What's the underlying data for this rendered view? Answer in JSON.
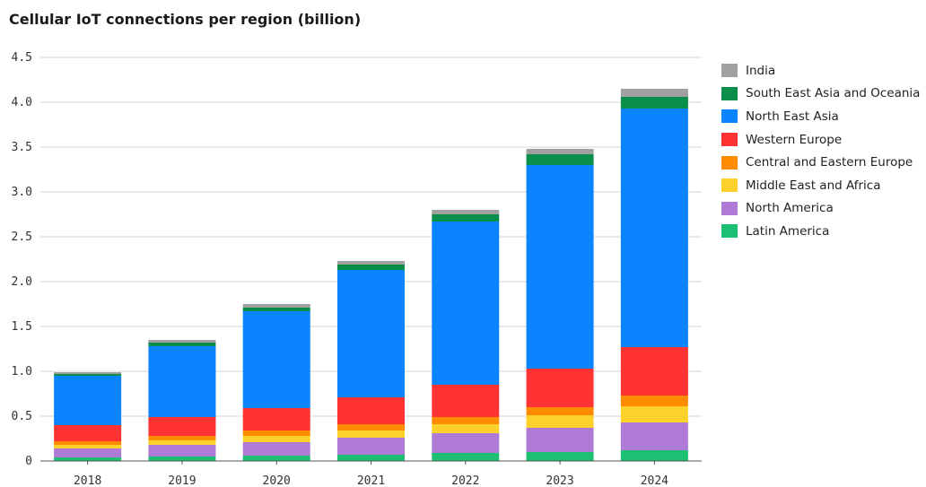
{
  "chart_data": {
    "type": "bar",
    "stacked": true,
    "title": "Cellular IoT connections per region (billion)",
    "xlabel": "",
    "ylabel": "",
    "categories": [
      "2018",
      "2019",
      "2020",
      "2021",
      "2022",
      "2023",
      "2024"
    ],
    "ylim": [
      0,
      4.5
    ],
    "yticks": [
      "0",
      "0.5",
      "1.0",
      "1.5",
      "2.0",
      "2.5",
      "3.0",
      "3.5",
      "4.0",
      "4.5"
    ],
    "grid": true,
    "legend_position": "right",
    "series": [
      {
        "name": "Latin America",
        "color": "#1dbf73",
        "values": [
          0.04,
          0.05,
          0.06,
          0.07,
          0.09,
          0.1,
          0.12
        ]
      },
      {
        "name": "North America",
        "color": "#b07bd6",
        "values": [
          0.1,
          0.13,
          0.15,
          0.19,
          0.22,
          0.27,
          0.31
        ]
      },
      {
        "name": "Middle East and Africa",
        "color": "#fcd12a",
        "values": [
          0.04,
          0.05,
          0.07,
          0.08,
          0.1,
          0.14,
          0.18
        ]
      },
      {
        "name": "Central and Eastern Europe",
        "color": "#ff8c00",
        "values": [
          0.04,
          0.05,
          0.06,
          0.07,
          0.08,
          0.09,
          0.12
        ]
      },
      {
        "name": "Western Europe",
        "color": "#ff3333",
        "values": [
          0.18,
          0.21,
          0.25,
          0.3,
          0.36,
          0.43,
          0.54
        ]
      },
      {
        "name": "North East Asia",
        "color": "#0a84ff",
        "values": [
          0.55,
          0.79,
          1.08,
          1.42,
          1.82,
          2.27,
          2.66
        ]
      },
      {
        "name": "South East Asia and Oceania",
        "color": "#0a8f4a",
        "values": [
          0.02,
          0.04,
          0.04,
          0.06,
          0.08,
          0.12,
          0.13
        ]
      },
      {
        "name": "India",
        "color": "#a0a0a0",
        "values": [
          0.02,
          0.03,
          0.04,
          0.04,
          0.05,
          0.06,
          0.09
        ]
      }
    ]
  }
}
